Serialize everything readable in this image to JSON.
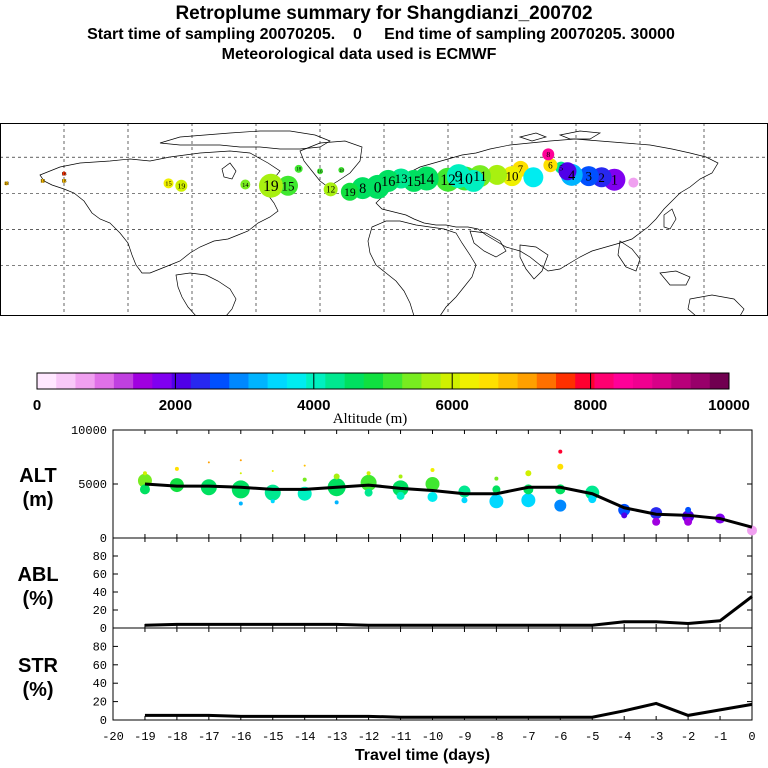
{
  "header": {
    "title": "Retroplume summary for Shangdianzi_200702",
    "subtitle": "Start time of sampling 20070205.    0     End time of sampling 20070205. 30000",
    "met_line": "Meteorological data used is ECMWF"
  },
  "colorbar": {
    "label": "Altitude (m)",
    "ticks": [
      "0",
      "2000",
      "4000",
      "6000",
      "8000",
      "10000"
    ],
    "colors": [
      "#ffe8ff",
      "#f8c8f8",
      "#f0a0f0",
      "#e070e8",
      "#c040e0",
      "#a000e0",
      "#8000f0",
      "#5000e8",
      "#2828f0",
      "#0050ff",
      "#0088ff",
      "#00b4ff",
      "#00d8ff",
      "#00ecf0",
      "#00f0c0",
      "#00e890",
      "#00e060",
      "#10e040",
      "#40e830",
      "#78ec20",
      "#a8f010",
      "#d0f000",
      "#f0f000",
      "#ffe000",
      "#ffc000",
      "#ffa000",
      "#ff7000",
      "#ff3000",
      "#ff0030",
      "#ff0070",
      "#ff0098",
      "#f00090",
      "#d80088",
      "#b8007a",
      "#98006a",
      "#700050"
    ]
  },
  "map": {
    "plume": [
      {
        "lon": 116.9,
        "lat": 40.6,
        "alt": 600,
        "r": 5,
        "label": ""
      },
      {
        "lon": 108,
        "lat": 43,
        "alt": 1800,
        "r": 11,
        "label": "1"
      },
      {
        "lon": 102,
        "lat": 45,
        "alt": 2400,
        "r": 10,
        "label": "2"
      },
      {
        "lon": 96,
        "lat": 46,
        "alt": 2700,
        "r": 10,
        "label": "3"
      },
      {
        "lon": 88,
        "lat": 47,
        "alt": 3300,
        "r": 11,
        "label": "4"
      },
      {
        "lon": 83,
        "lat": 53,
        "alt": 4200,
        "r": 6,
        "label": "5"
      },
      {
        "lon": 78,
        "lat": 55,
        "alt": 6600,
        "r": 7,
        "label": "6"
      },
      {
        "lon": 77,
        "lat": 64,
        "alt": 8400,
        "r": 6,
        "label": "8"
      },
      {
        "lon": 64,
        "lat": 52,
        "alt": 6600,
        "r": 8,
        "label": "7"
      },
      {
        "lon": 60,
        "lat": 46,
        "alt": 6300,
        "r": 10,
        "label": "10"
      },
      {
        "lon": 53,
        "lat": 47,
        "alt": 5700,
        "r": 10,
        "label": ""
      },
      {
        "lon": 45,
        "lat": 46,
        "alt": 5400,
        "r": 11,
        "label": "11"
      },
      {
        "lon": 38,
        "lat": 44,
        "alt": 5100,
        "r": 12,
        "label": "10"
      },
      {
        "lon": 30,
        "lat": 43,
        "alt": 5000,
        "r": 12,
        "label": "12"
      },
      {
        "lon": 20,
        "lat": 44,
        "alt": 4700,
        "r": 12,
        "label": "14"
      },
      {
        "lon": 14,
        "lat": 42,
        "alt": 4600,
        "r": 11,
        "label": "15"
      },
      {
        "lon": 8,
        "lat": 44,
        "alt": 4400,
        "r": 10,
        "label": "13"
      },
      {
        "lon": 2,
        "lat": 42,
        "alt": 4500,
        "r": 11,
        "label": "16"
      },
      {
        "lon": -3,
        "lat": 37,
        "alt": 4600,
        "r": 12,
        "label": "0"
      },
      {
        "lon": -10,
        "lat": 36,
        "alt": 4700,
        "r": 11,
        "label": "8"
      },
      {
        "lon": -16,
        "lat": 33,
        "alt": 4800,
        "r": 9,
        "label": "19"
      },
      {
        "lon": -25,
        "lat": 35,
        "alt": 5600,
        "r": 7,
        "label": "12"
      },
      {
        "lon": -45,
        "lat": 38,
        "alt": 5200,
        "r": 10,
        "label": "15"
      },
      {
        "lon": -53,
        "lat": 38,
        "alt": 5800,
        "r": 12,
        "label": "19"
      },
      {
        "lon": -65,
        "lat": 39,
        "alt": 5300,
        "r": 5,
        "label": "14"
      },
      {
        "lon": -95,
        "lat": 38,
        "alt": 6100,
        "r": 6,
        "label": "19"
      },
      {
        "lon": -101,
        "lat": 40,
        "alt": 6300,
        "r": 5,
        "label": "15"
      },
      {
        "lon": -40,
        "lat": 52,
        "alt": 5000,
        "r": 4,
        "label": "18"
      },
      {
        "lon": -30,
        "lat": 50,
        "alt": 5000,
        "r": 3,
        "label": "16"
      },
      {
        "lon": -20,
        "lat": 51,
        "alt": 5000,
        "r": 3,
        "label": "18"
      },
      {
        "lon": 35,
        "lat": 46,
        "alt": 3900,
        "r": 12,
        "label": "9"
      },
      {
        "lon": 42,
        "lat": 42,
        "alt": 4000,
        "r": 11,
        "label": ""
      },
      {
        "lon": 70,
        "lat": 45,
        "alt": 3800,
        "r": 10,
        "label": ""
      },
      {
        "lon": 86,
        "lat": 50,
        "alt": 2000,
        "r": 9,
        "label": ""
      },
      {
        "lon": -177,
        "lat": 40,
        "alt": 6800,
        "r": 2,
        "label": "18"
      },
      {
        "lon": -160,
        "lat": 42,
        "alt": 6800,
        "r": 2,
        "label": "18"
      },
      {
        "lon": -150,
        "lat": 42,
        "alt": 6800,
        "r": 2,
        "label": "18"
      },
      {
        "lon": -150,
        "lat": 48,
        "alt": 7500,
        "r": 2,
        "label": "16"
      }
    ]
  },
  "chart_data": [
    {
      "type": "scatter",
      "panel": "ALT",
      "ylabel": "ALT\n(m)",
      "ylim": [
        0,
        10000
      ],
      "yticks": [
        "0",
        "5000",
        "10000"
      ],
      "x": [
        -19,
        -18,
        -17,
        -16,
        -15,
        -14,
        -13,
        -12,
        -11,
        -10,
        -9,
        -8,
        -7,
        -6,
        -5,
        -4,
        -3,
        -2,
        -1,
        0
      ],
      "line": [
        5000,
        4800,
        4800,
        4700,
        4500,
        4500,
        4700,
        4900,
        4600,
        4400,
        4100,
        4100,
        4700,
        4700,
        4100,
        2800,
        2200,
        2100,
        1800,
        1000
      ],
      "points": [
        {
          "x": -19,
          "y": 5300,
          "r": 7
        },
        {
          "x": -19,
          "y": 4500,
          "r": 5
        },
        {
          "x": -19,
          "y": 6000,
          "r": 2
        },
        {
          "x": -18,
          "y": 4900,
          "r": 7
        },
        {
          "x": -18,
          "y": 6400,
          "r": 2
        },
        {
          "x": -17,
          "y": 4700,
          "r": 8
        },
        {
          "x": -17,
          "y": 7000,
          "r": 1
        },
        {
          "x": -16,
          "y": 4500,
          "r": 9
        },
        {
          "x": -16,
          "y": 6000,
          "r": 1
        },
        {
          "x": -16,
          "y": 7200,
          "r": 1
        },
        {
          "x": -16,
          "y": 3200,
          "r": 2
        },
        {
          "x": -15,
          "y": 4200,
          "r": 8
        },
        {
          "x": -15,
          "y": 6200,
          "r": 1
        },
        {
          "x": -15,
          "y": 3400,
          "r": 2
        },
        {
          "x": -14,
          "y": 4100,
          "r": 7
        },
        {
          "x": -14,
          "y": 5400,
          "r": 2
        },
        {
          "x": -14,
          "y": 6700,
          "r": 1
        },
        {
          "x": -13,
          "y": 4700,
          "r": 9
        },
        {
          "x": -13,
          "y": 3300,
          "r": 2
        },
        {
          "x": -13,
          "y": 5700,
          "r": 3
        },
        {
          "x": -12,
          "y": 5100,
          "r": 8
        },
        {
          "x": -12,
          "y": 4200,
          "r": 4
        },
        {
          "x": -12,
          "y": 6000,
          "r": 2
        },
        {
          "x": -11,
          "y": 4600,
          "r": 8
        },
        {
          "x": -11,
          "y": 3900,
          "r": 4
        },
        {
          "x": -11,
          "y": 5700,
          "r": 2
        },
        {
          "x": -10,
          "y": 5000,
          "r": 7
        },
        {
          "x": -10,
          "y": 3800,
          "r": 5
        },
        {
          "x": -10,
          "y": 6300,
          "r": 2
        },
        {
          "x": -9,
          "y": 4300,
          "r": 6
        },
        {
          "x": -9,
          "y": 3500,
          "r": 3
        },
        {
          "x": -8,
          "y": 3400,
          "r": 7
        },
        {
          "x": -8,
          "y": 4500,
          "r": 4
        },
        {
          "x": -8,
          "y": 5500,
          "r": 2
        },
        {
          "x": -7,
          "y": 3500,
          "r": 7
        },
        {
          "x": -7,
          "y": 4500,
          "r": 5
        },
        {
          "x": -7,
          "y": 6000,
          "r": 3
        },
        {
          "x": -6,
          "y": 3000,
          "r": 6
        },
        {
          "x": -6,
          "y": 4500,
          "r": 5
        },
        {
          "x": -6,
          "y": 6600,
          "r": 3
        },
        {
          "x": -6,
          "y": 8000,
          "r": 2
        },
        {
          "x": -5,
          "y": 4200,
          "r": 7
        },
        {
          "x": -5,
          "y": 3600,
          "r": 4
        },
        {
          "x": -4,
          "y": 2600,
          "r": 6
        },
        {
          "x": -4,
          "y": 2100,
          "r": 3
        },
        {
          "x": -3,
          "y": 2300,
          "r": 6
        },
        {
          "x": -3,
          "y": 1500,
          "r": 4
        },
        {
          "x": -2,
          "y": 2000,
          "r": 6
        },
        {
          "x": -2,
          "y": 1500,
          "r": 4
        },
        {
          "x": -2,
          "y": 2600,
          "r": 3
        },
        {
          "x": -1,
          "y": 1800,
          "r": 5
        },
        {
          "x": 0,
          "y": 700,
          "r": 5
        }
      ]
    },
    {
      "type": "line",
      "panel": "ABL",
      "ylabel": "ABL\n(%)",
      "ylim": [
        0,
        100
      ],
      "yticks": [
        "0",
        "20",
        "40",
        "60",
        "80"
      ],
      "x": [
        -19,
        -18,
        -17,
        -16,
        -15,
        -14,
        -13,
        -12,
        -11,
        -10,
        -9,
        -8,
        -7,
        -6,
        -5,
        -4,
        -3,
        -2,
        -1,
        0
      ],
      "values": [
        3,
        4,
        4,
        4,
        4,
        4,
        4,
        3,
        3,
        3,
        3,
        3,
        3,
        3,
        3,
        7,
        7,
        5,
        8,
        35
      ]
    },
    {
      "type": "line",
      "panel": "STR",
      "ylabel": "STR\n(%)",
      "ylim": [
        0,
        100
      ],
      "yticks": [
        "0",
        "20",
        "40",
        "60",
        "80"
      ],
      "x": [
        -19,
        -18,
        -17,
        -16,
        -15,
        -14,
        -13,
        -12,
        -11,
        -10,
        -9,
        -8,
        -7,
        -6,
        -5,
        -4,
        -3,
        -2,
        -1,
        0
      ],
      "values": [
        5,
        5,
        5,
        4,
        4,
        4,
        4,
        4,
        3,
        3,
        3,
        3,
        3,
        3,
        3,
        10,
        18,
        5,
        11,
        17
      ],
      "xlabel": "Travel time (days)",
      "xticks": [
        "-20",
        "-19",
        "-18",
        "-17",
        "-16",
        "-15",
        "-14",
        "-13",
        "-12",
        "-11",
        "-10",
        "-9",
        "-8",
        "-7",
        "-6",
        "-5",
        "-4",
        "-3",
        "-2",
        "-1",
        "0"
      ],
      "xlim": [
        -20,
        0
      ]
    }
  ]
}
